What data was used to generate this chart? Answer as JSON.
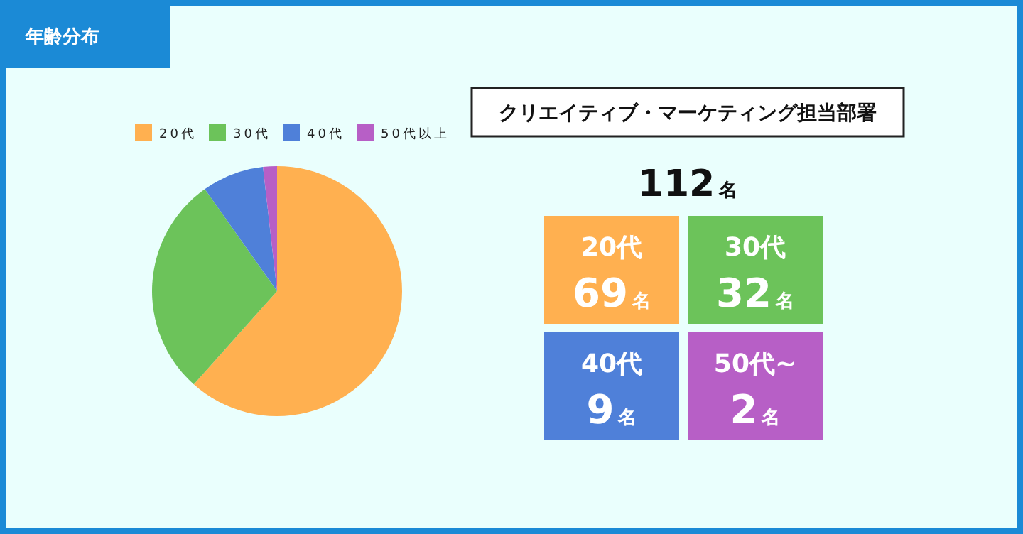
{
  "chart_data": [
    {
      "type": "pie",
      "title": "年齢分布",
      "categories": [
        "20代",
        "30代",
        "40代",
        "50代以上"
      ],
      "values": [
        61.6,
        28.6,
        8.0,
        1.8
      ],
      "colors": [
        "#ffb050",
        "#6cc35a",
        "#4f80d9",
        "#b75fc6"
      ],
      "legend": "top"
    },
    {
      "type": "other",
      "title": "クリエイティブ・マーケティング担当部署",
      "annotations": [
        "112名"
      ],
      "categories": [
        "20代",
        "30代",
        "40代",
        "50代~"
      ],
      "value_labels": [
        "69名",
        "32名",
        "9名",
        "2名"
      ],
      "colors": [
        "#ffb050",
        "#6cc35a",
        "#4f80d9",
        "#b75fc6"
      ]
    }
  ]
}
